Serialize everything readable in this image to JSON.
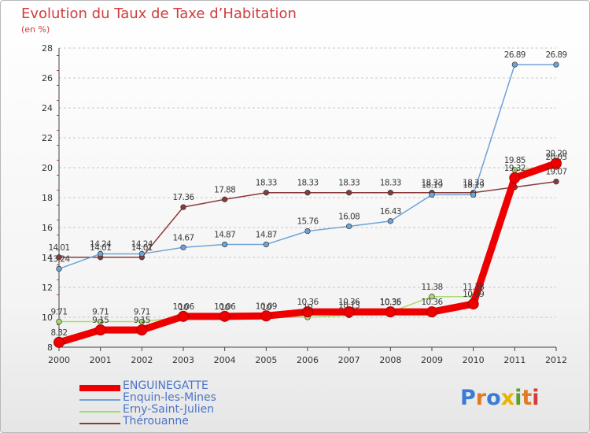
{
  "chart_data": {
    "type": "line",
    "title": "Evolution du Taux de Taxe d’Habitation",
    "ylabel": "(en %)",
    "xlabel": "",
    "x": [
      "2000",
      "2001",
      "2002",
      "2003",
      "2004",
      "2005",
      "2006",
      "2007",
      "2008",
      "2009",
      "2010",
      "2011",
      "2012"
    ],
    "ylim": [
      8,
      28
    ],
    "yticks": [
      "8",
      "10",
      "12",
      "14",
      "16",
      "18",
      "20",
      "22",
      "24",
      "26",
      "28"
    ],
    "grid": "horizontal-dashed",
    "legend_position": "bottom-left",
    "series": [
      {
        "name": "ENGUINEGATTE",
        "color": "#ee0000",
        "values": [
          8.32,
          9.15,
          9.15,
          10.06,
          10.06,
          10.09,
          10.36,
          10.36,
          10.36,
          10.36,
          10.89,
          19.32,
          20.29
        ],
        "labels": [
          "8.32",
          "9.15",
          "9.15",
          "10.06",
          "10.06",
          "10.09",
          "10.36",
          "10.36",
          "10.36",
          "10.36",
          "10.89",
          "19.32",
          "20.29"
        ]
      },
      {
        "name": "Enquin-les-Mines",
        "color": "#6fa3d6",
        "values": [
          13.24,
          14.24,
          14.24,
          14.67,
          14.87,
          14.87,
          15.76,
          16.08,
          16.43,
          18.19,
          18.19,
          26.89,
          26.89
        ],
        "labels": [
          "13.24",
          "14.24",
          "14.24",
          "14.67",
          "14.87",
          "14.87",
          "15.76",
          "16.08",
          "16.43",
          "18.19",
          "18.19",
          "26.89",
          "26.89"
        ]
      },
      {
        "name": "Erny-Saint-Julien",
        "color": "#a7dd6e",
        "values": [
          9.71,
          9.71,
          9.71,
          10.0,
          10.0,
          10.0,
          10.0,
          10.13,
          10.35,
          11.38,
          11.38,
          19.85,
          20.05
        ],
        "labels": [
          "9.71",
          "9.71",
          "9.71",
          "10",
          "10",
          "10",
          "10",
          "10.13",
          "10.35",
          "11.38",
          "11.38",
          "19.85",
          "20.05"
        ]
      },
      {
        "name": "Thérouanne",
        "color": "#8a3a3a",
        "values": [
          14.01,
          14.01,
          14.01,
          17.36,
          17.88,
          18.33,
          18.33,
          18.33,
          18.33,
          18.33,
          18.33,
          18.7,
          19.07
        ],
        "labels": [
          "14.01",
          "14.01",
          "14.01",
          "17.36",
          "17.88",
          "18.33",
          "18.33",
          "18.33",
          "18.33",
          "18.33",
          "18.33",
          "",
          "19.07"
        ]
      }
    ]
  },
  "brand": {
    "logo_text": "Proxiti",
    "letter_colors": [
      "#3a7bd5",
      "#e07b24",
      "#3a7bd5",
      "#e8b400",
      "#5a9e2f",
      "#e07b24",
      "#d23c3c"
    ]
  }
}
